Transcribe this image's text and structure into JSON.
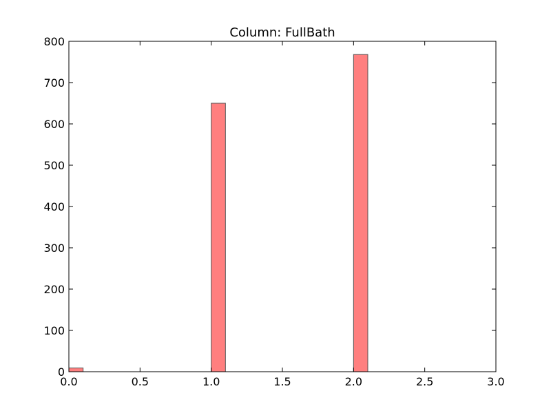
{
  "chart_data": {
    "type": "bar",
    "title": "Column: FullBath",
    "xlabel": "",
    "ylabel": "",
    "xlim": [
      0,
      3
    ],
    "ylim": [
      0,
      800
    ],
    "xticks": [
      "0.0",
      "0.5",
      "1.0",
      "1.5",
      "2.0",
      "2.5",
      "3.0"
    ],
    "xtick_values": [
      0,
      0.5,
      1,
      1.5,
      2,
      2.5,
      3
    ],
    "yticks": [
      "0",
      "100",
      "200",
      "300",
      "400",
      "500",
      "600",
      "700",
      "800"
    ],
    "ytick_values": [
      0,
      100,
      200,
      300,
      400,
      500,
      600,
      700,
      800
    ],
    "grid": false,
    "bins": [
      {
        "x0": 0.0,
        "x1": 0.1,
        "count": 9
      },
      {
        "x0": 1.0,
        "x1": 1.1,
        "count": 650
      },
      {
        "x0": 2.0,
        "x1": 2.1,
        "count": 768
      }
    ],
    "bar_color": "#ff7f7f",
    "edge_color": "#555555"
  }
}
